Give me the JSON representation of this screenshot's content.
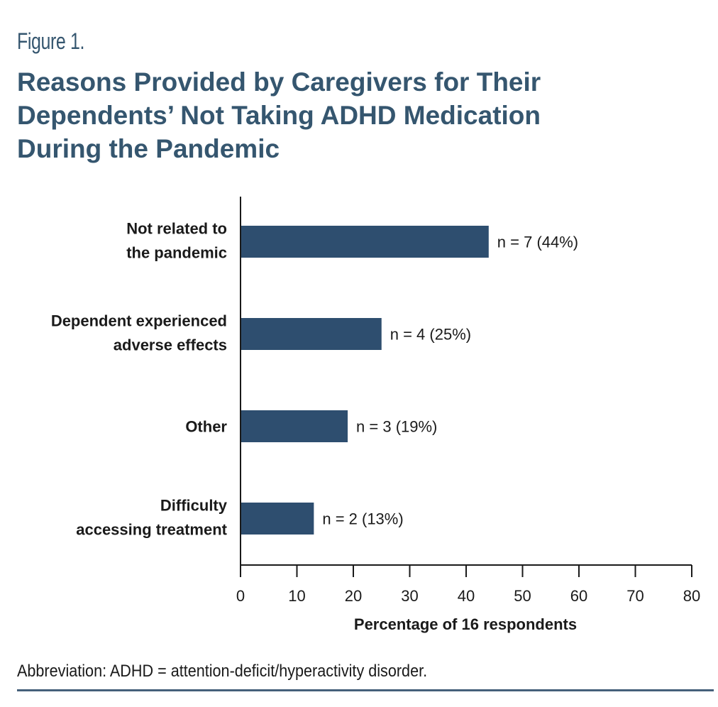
{
  "figure_label": "Figure 1.",
  "title_lines": [
    "Reasons Provided by Caregivers for Their",
    "Dependents’ Not Taking ADHD Medication",
    "During the Pandemic"
  ],
  "footnote": "Abbreviation: ADHD = attention-deficit/hyperactivity disorder.",
  "colors": {
    "bar": "#2e4e6f",
    "title": "#35566f",
    "rule": "#45607a",
    "axis": "#1a1a1a"
  },
  "chart_data": {
    "type": "bar",
    "orientation": "horizontal",
    "title": "Reasons Provided by Caregivers for Their Dependents’ Not Taking ADHD Medication During the Pandemic",
    "categories": [
      [
        "Not related to",
        "the pandemic"
      ],
      [
        "Dependent experienced",
        "adverse effects"
      ],
      [
        "Other"
      ],
      [
        "Difficulty",
        "accessing treatment"
      ]
    ],
    "values": [
      44,
      25,
      19,
      13
    ],
    "counts": [
      7,
      4,
      3,
      2
    ],
    "data_labels": [
      "n = 7 (44%)",
      "n = 4 (25%)",
      "n = 3 (19%)",
      "n = 2 (13%)"
    ],
    "xlabel": "Percentage of 16 respondents",
    "ylabel": "",
    "xlim": [
      0,
      80
    ],
    "xticks": [
      0,
      10,
      20,
      30,
      40,
      50,
      60,
      70,
      80
    ],
    "grid": false,
    "legend": "none"
  }
}
